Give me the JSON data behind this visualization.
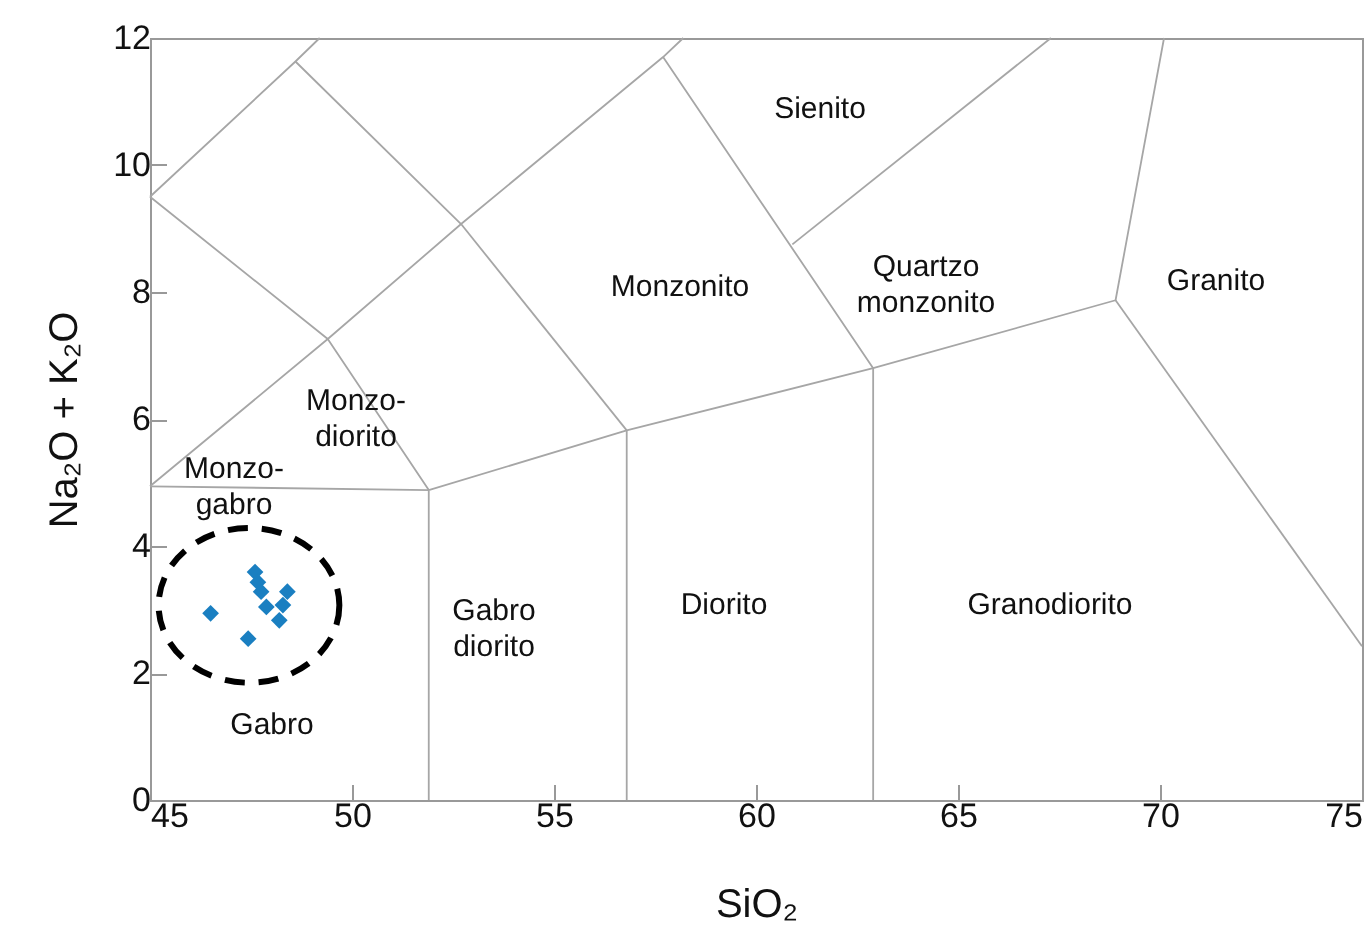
{
  "chart_data": {
    "type": "scatter",
    "xlabel": "SiO₂",
    "ylabel": "Na₂O + K₂O",
    "xlim": [
      45,
      75
    ],
    "ylim": [
      0,
      12
    ],
    "xticks": [
      45,
      50,
      55,
      60,
      65,
      70,
      75
    ],
    "yticks": [
      0,
      2,
      4,
      6,
      8,
      10,
      12
    ],
    "series": [
      {
        "marker": "diamond",
        "color": "#1a7fc1",
        "x": [
          46.5,
          47.43,
          47.6,
          47.67,
          47.75,
          47.88,
          48.4,
          48.29,
          48.2
        ],
        "values": [
          2.94,
          2.54,
          3.59,
          3.43,
          3.28,
          3.04,
          3.28,
          3.07,
          2.83
        ]
      },
      {
        "type": "line",
        "color": "#a6a6a6",
        "x": [
          45,
          48.6,
          49.2
        ],
        "values": [
          9.5,
          11.63,
          12
        ]
      },
      {
        "type": "line",
        "color": "#a6a6a6",
        "x": [
          48.6,
          52.7,
          57.7,
          58.2
        ],
        "values": [
          11.63,
          9.07,
          11.7,
          12
        ]
      },
      {
        "type": "line",
        "color": "#a6a6a6",
        "x": [
          45,
          49.4,
          52.7
        ],
        "values": [
          9.5,
          7.26,
          9.07
        ]
      },
      {
        "type": "line",
        "color": "#a6a6a6",
        "x": [
          45,
          49.4,
          51.9
        ],
        "values": [
          4.94,
          7.26,
          4.88
        ]
      },
      {
        "type": "line",
        "color": "#a6a6a6",
        "x": [
          45,
          51.9
        ],
        "values": [
          4.94,
          4.88
        ]
      },
      {
        "type": "line",
        "color": "#a6a6a6",
        "x": [
          51.9,
          51.9,
          56.8,
          62.9,
          68.9,
          70.1
        ],
        "values": [
          0,
          4.88,
          5.82,
          6.8,
          7.87,
          12
        ]
      },
      {
        "type": "line",
        "color": "#a6a6a6",
        "x": [
          52.7,
          56.8
        ],
        "values": [
          9.07,
          5.82
        ]
      },
      {
        "type": "line",
        "color": "#a6a6a6",
        "x": [
          56.8,
          56.8
        ],
        "values": [
          0,
          5.82
        ]
      },
      {
        "type": "line",
        "color": "#a6a6a6",
        "x": [
          57.7,
          62.9,
          62.9
        ],
        "values": [
          11.7,
          6.8,
          0
        ]
      },
      {
        "type": "line",
        "color": "#a6a6a6",
        "x": [
          60.9,
          67.3
        ],
        "values": [
          8.75,
          12
        ]
      },
      {
        "type": "line",
        "color": "#a6a6a6",
        "x": [
          68.9,
          75
        ],
        "values": [
          7.87,
          2.42
        ]
      }
    ],
    "annotations": [
      "Sienito",
      "Quartzo\nmonzonito",
      "Monzonito",
      "Granito",
      "Monzo-\ndiorito",
      "Monzo-\ngabro",
      "Gabro\ndiorito",
      "Diorito",
      "Granodiorito",
      "Gabro"
    ]
  }
}
